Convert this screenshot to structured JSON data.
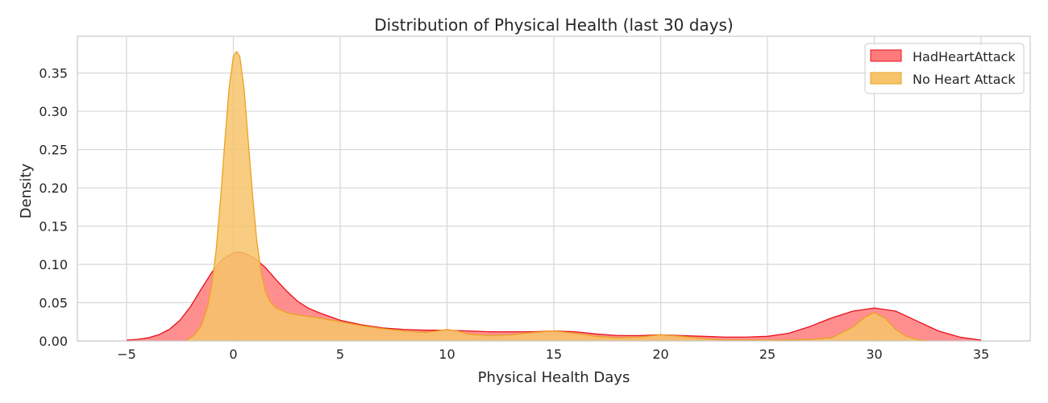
{
  "chart_data": {
    "type": "area",
    "title": "Distribution of Physical Health (last 30 days)",
    "xlabel": "Physical Health Days",
    "ylabel": "Density",
    "xlim": [
      -7.3,
      37.3
    ],
    "ylim": [
      0,
      0.398
    ],
    "xticks": [
      -5,
      0,
      5,
      10,
      15,
      20,
      25,
      30,
      35
    ],
    "xtick_labels": [
      "−5",
      "0",
      "5",
      "10",
      "15",
      "20",
      "25",
      "30",
      "35"
    ],
    "yticks": [
      0,
      0.05,
      0.1,
      0.15,
      0.2,
      0.25,
      0.3,
      0.35
    ],
    "ytick_labels": [
      "0.00",
      "0.05",
      "0.10",
      "0.15",
      "0.20",
      "0.25",
      "0.30",
      "0.35"
    ],
    "grid": true,
    "legend_position": "top-right",
    "series": [
      {
        "name": "HadHeartAttack",
        "fill": "#ff7b7b",
        "stroke": "#e8101c",
        "x": [
          -5,
          -4.5,
          -4,
          -3.5,
          -3,
          -2.5,
          -2,
          -1.5,
          -1,
          -0.5,
          0,
          0.25,
          0.5,
          1,
          1.5,
          2,
          2.5,
          3,
          3.5,
          4,
          5,
          6,
          7,
          8,
          9,
          10,
          11,
          12,
          13,
          14,
          15,
          16,
          17,
          18,
          19,
          20,
          21,
          22,
          23,
          24,
          25,
          26,
          27,
          28,
          29,
          30,
          31,
          32,
          33,
          34,
          35
        ],
        "y": [
          0.001,
          0.002,
          0.004,
          0.008,
          0.015,
          0.027,
          0.045,
          0.068,
          0.09,
          0.107,
          0.115,
          0.116,
          0.115,
          0.108,
          0.096,
          0.08,
          0.065,
          0.052,
          0.043,
          0.037,
          0.027,
          0.021,
          0.017,
          0.015,
          0.014,
          0.014,
          0.013,
          0.012,
          0.012,
          0.012,
          0.013,
          0.012,
          0.009,
          0.007,
          0.007,
          0.008,
          0.007,
          0.006,
          0.005,
          0.005,
          0.006,
          0.01,
          0.019,
          0.03,
          0.039,
          0.043,
          0.039,
          0.026,
          0.013,
          0.005,
          0.001
        ]
      },
      {
        "name": "No Heart Attack",
        "fill": "#f7c46b",
        "stroke": "#eaa220",
        "x": [
          -2.2,
          -1.8,
          -1.5,
          -1.2,
          -1,
          -0.8,
          -0.6,
          -0.4,
          -0.2,
          0,
          0.15,
          0.3,
          0.5,
          0.7,
          0.9,
          1.1,
          1.3,
          1.5,
          1.7,
          2,
          2.5,
          3,
          3.5,
          4,
          5,
          6,
          7,
          8,
          9,
          9.5,
          10,
          10.5,
          11,
          12,
          13,
          14,
          15,
          16,
          17,
          18,
          19,
          20,
          21,
          22,
          23,
          24,
          25,
          26,
          27,
          28,
          29,
          29.5,
          30,
          30.5,
          31,
          31.5,
          32,
          32.5
        ],
        "y": [
          0.001,
          0.008,
          0.02,
          0.045,
          0.075,
          0.12,
          0.185,
          0.26,
          0.33,
          0.372,
          0.378,
          0.372,
          0.33,
          0.26,
          0.19,
          0.13,
          0.09,
          0.065,
          0.052,
          0.043,
          0.037,
          0.034,
          0.032,
          0.03,
          0.025,
          0.02,
          0.016,
          0.013,
          0.011,
          0.013,
          0.015,
          0.013,
          0.009,
          0.007,
          0.008,
          0.011,
          0.013,
          0.01,
          0.006,
          0.004,
          0.005,
          0.008,
          0.006,
          0.003,
          0.001,
          0.001,
          0.001,
          0.001,
          0.002,
          0.004,
          0.018,
          0.03,
          0.037,
          0.03,
          0.015,
          0.006,
          0.002,
          0.0
        ]
      }
    ]
  }
}
